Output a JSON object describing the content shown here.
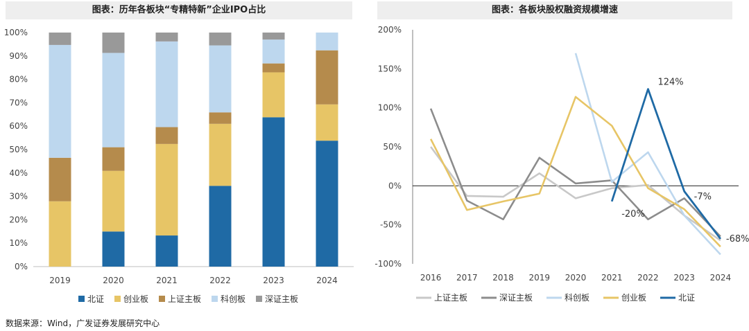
{
  "source": "数据来源：Wind，广发证券发展研究中心",
  "chart_data": [
    {
      "type": "bar",
      "stacked": true,
      "title": "图表：历年各板块“专精特新”企业IPO占比",
      "categories": [
        "2019",
        "2020",
        "2021",
        "2022",
        "2023",
        "2024"
      ],
      "y_ticks": [
        "0%",
        "10%",
        "20%",
        "30%",
        "40%",
        "50%",
        "60%",
        "70%",
        "80%",
        "90%",
        "100%"
      ],
      "ylim": [
        0,
        100
      ],
      "legend_position": "bottom",
      "series": [
        {
          "name": "北证",
          "color": "#1f6aa5",
          "values": [
            0,
            15,
            13.3,
            34.5,
            63.8,
            53.8
          ]
        },
        {
          "name": "创业板",
          "color": "#e7c566",
          "values": [
            27.9,
            25.9,
            39.1,
            26.5,
            19.2,
            15.5
          ]
        },
        {
          "name": "上证主板",
          "color": "#b58b4c",
          "values": [
            18.6,
            10.1,
            7.2,
            4.9,
            3.8,
            23.1
          ]
        },
        {
          "name": "科创板",
          "color": "#bdd7ee",
          "values": [
            48.2,
            40.3,
            36.6,
            28.6,
            10.2,
            7.6
          ]
        },
        {
          "name": "深证主板",
          "color": "#999999",
          "values": [
            5.3,
            8.7,
            3.8,
            5.5,
            3.0,
            0
          ]
        }
      ]
    },
    {
      "type": "line",
      "title": "图表：各板块股权融资规模增速",
      "x": [
        "2016",
        "2017",
        "2018",
        "2019",
        "2020",
        "2021",
        "2022",
        "2023",
        "2024"
      ],
      "y_ticks": [
        "-100%",
        "-50%",
        "0%",
        "50%",
        "100%",
        "150%",
        "200%"
      ],
      "ylim": [
        -100,
        200
      ],
      "legend_position": "bottom",
      "series": [
        {
          "name": "上证主板",
          "color": "#c8c8c8",
          "values": [
            50,
            -13,
            -14,
            16,
            -16,
            -3,
            1,
            -38,
            -70
          ]
        },
        {
          "name": "深证主板",
          "color": "#8c8c8c",
          "values": [
            99,
            -19,
            -43,
            36,
            3,
            7,
            -43,
            -16,
            -65
          ]
        },
        {
          "name": "科创板",
          "color": "#bdd7ee",
          "values": [
            null,
            null,
            null,
            null,
            170,
            5,
            43,
            -38,
            -88
          ]
        },
        {
          "name": "创业板",
          "color": "#e7c566",
          "values": [
            60,
            -31,
            -20,
            -10,
            114,
            77,
            -3,
            -30,
            -78
          ]
        },
        {
          "name": "北证",
          "color": "#1f6aa5",
          "values": [
            null,
            null,
            null,
            null,
            null,
            -20,
            124,
            -7,
            -68
          ]
        }
      ],
      "annotations": [
        {
          "series": "北证",
          "x": "2021",
          "label": "-20%"
        },
        {
          "series": "北证",
          "x": "2022",
          "label": "124%"
        },
        {
          "series": "北证",
          "x": "2023",
          "label": "-7%"
        },
        {
          "series": "北证",
          "x": "2024",
          "label": "-68%"
        }
      ]
    }
  ]
}
